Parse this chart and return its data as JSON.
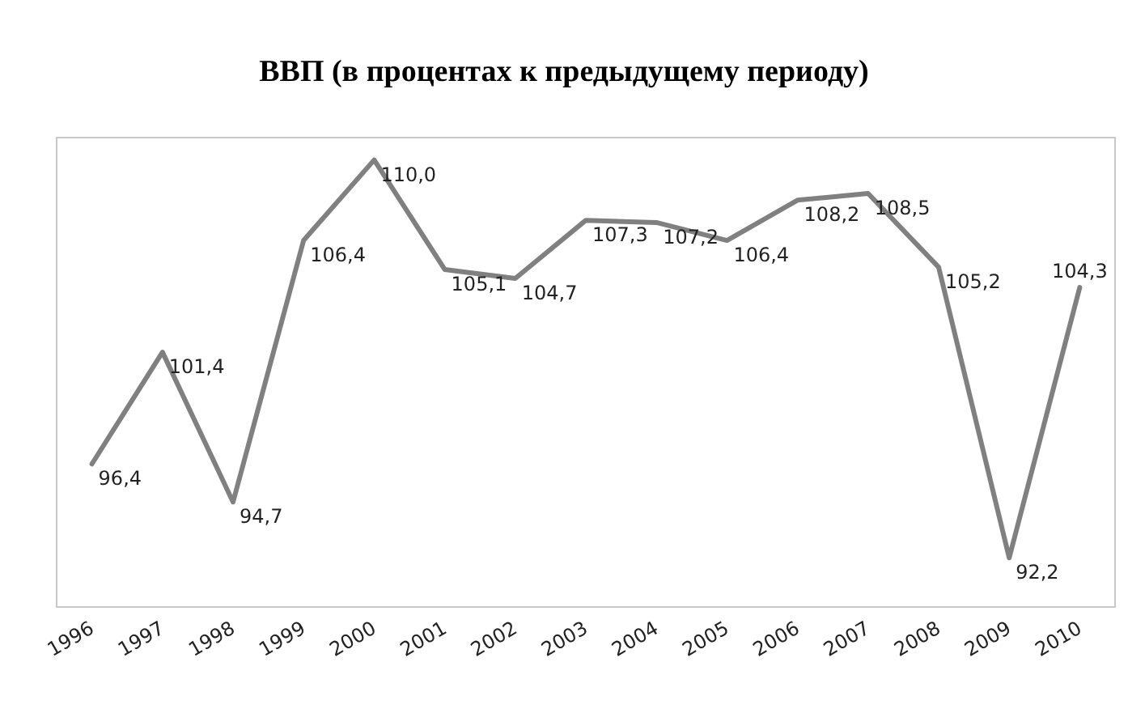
{
  "chart_data": {
    "type": "line",
    "title": "ВВП (в процентах к предыдущему периоду)",
    "categories": [
      "1996",
      "1997",
      "1998",
      "1999",
      "2000",
      "2001",
      "2002",
      "2003",
      "2004",
      "2005",
      "2006",
      "2007",
      "2008",
      "2009",
      "2010"
    ],
    "series": [
      {
        "color": "#808080",
        "values": [
          96.4,
          101.4,
          94.7,
          106.4,
          110.0,
          105.1,
          104.7,
          107.3,
          107.2,
          106.4,
          108.2,
          108.5,
          105.2,
          92.2,
          104.3
        ],
        "value_labels": [
          "96,4",
          "101,4",
          "94,7",
          "106,4",
          "110,0",
          "105,1",
          "104,7",
          "107,3",
          "107,2",
          "106,4",
          "108,2",
          "108,5",
          "105,2",
          "92,2",
          "104,3"
        ]
      }
    ],
    "grid": false,
    "marker": "none",
    "line_style": "solid",
    "tick_labels": "x"
  }
}
